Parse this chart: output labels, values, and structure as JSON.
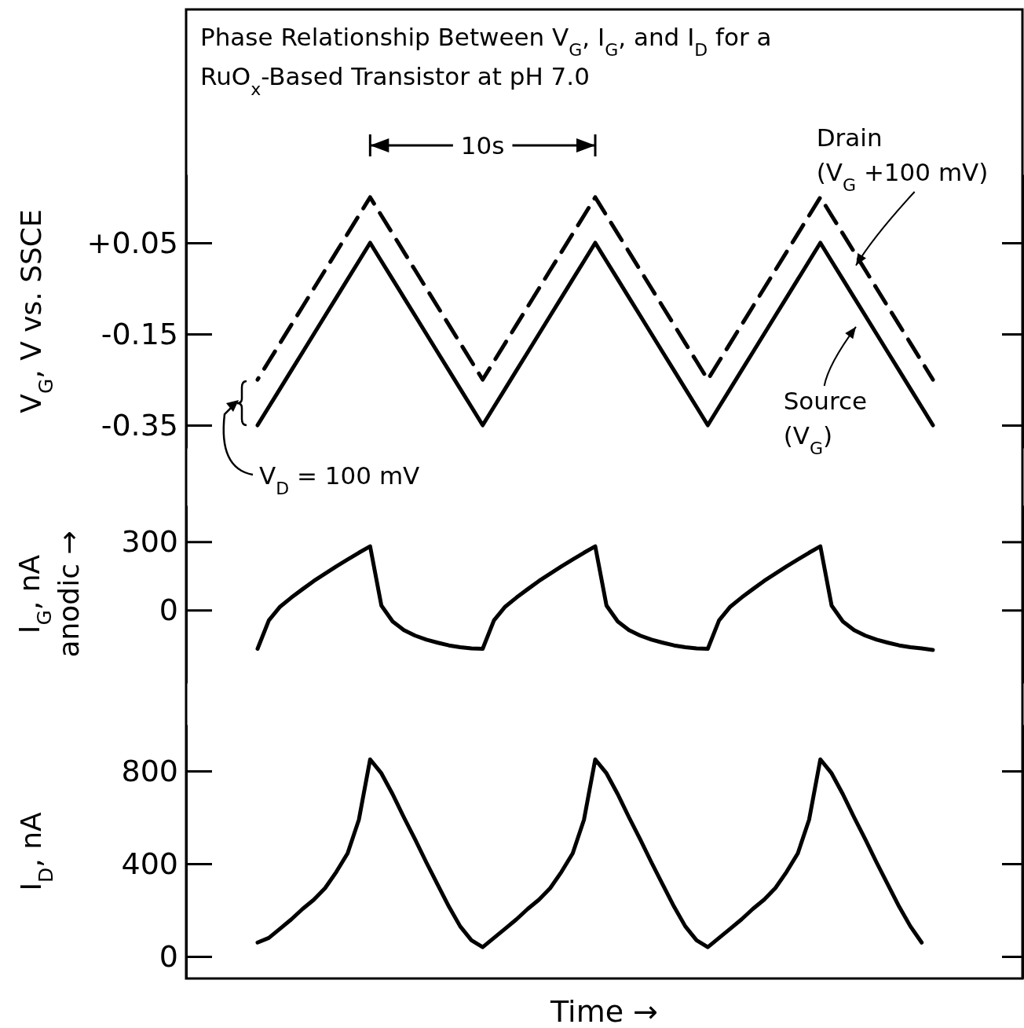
{
  "chart_data": [
    {
      "type": "line",
      "title": "Phase Relationship Between V$_{G}$, I$_{G}$, and I$_{D}$ for a RuO$_{x}$-Based Transistor at pH 7.0",
      "ylabel": "V$_{G}$, V vs. SSCE",
      "annotations": [
        "10s",
        "V$_{D}$ = 100 mV"
      ],
      "ylim": [
        -0.4,
        0.2
      ],
      "yticks": [
        {
          "value": 0.05,
          "label": "+0.05"
        },
        -0.15,
        -0.35
      ],
      "tick_labels": "y",
      "categories": [
        null,
        null,
        null,
        null,
        null,
        null,
        null,
        null,
        null,
        null,
        null,
        null,
        null,
        null,
        null,
        null,
        null,
        null,
        null,
        null,
        null,
        null,
        null,
        null,
        null,
        null,
        null,
        null,
        null,
        null,
        null,
        null,
        null,
        null,
        null,
        null,
        null,
        null,
        null,
        null,
        null,
        null,
        null,
        null,
        null,
        null,
        null,
        null,
        null,
        null,
        null,
        null,
        null,
        null,
        null,
        null,
        null,
        null,
        null,
        null,
        null
      ],
      "series": [
        {
          "name": "Drain (V$_{G}$ +100 mV)",
          "color": "#000000",
          "line_style": "dashed",
          "values": [
            -0.25,
            -0.21,
            -0.17,
            -0.13,
            -0.09,
            -0.05,
            -0.01,
            0.03,
            0.07,
            0.11,
            0.15,
            0.11,
            0.07,
            0.03,
            -0.01,
            -0.05,
            -0.09,
            -0.13,
            -0.17,
            -0.21,
            -0.25,
            -0.21,
            -0.17,
            -0.13,
            -0.09,
            -0.05,
            -0.01,
            0.03,
            0.07,
            0.11,
            0.15,
            0.11,
            0.07,
            0.03,
            -0.01,
            -0.05,
            -0.09,
            -0.13,
            -0.17,
            -0.21,
            -0.25,
            -0.21,
            -0.17,
            -0.13,
            -0.09,
            -0.05,
            -0.01,
            0.03,
            0.07,
            0.11,
            0.15,
            0.11,
            0.07,
            0.03,
            -0.01,
            -0.05,
            -0.09,
            -0.13,
            -0.17,
            -0.21,
            -0.25
          ]
        },
        {
          "name": "Source (V$_{G}$)",
          "color": "#000000",
          "line_style": "solid",
          "values": [
            -0.35,
            -0.31,
            -0.27,
            -0.23,
            -0.19,
            -0.15,
            -0.11,
            -0.07,
            -0.03,
            0.01,
            0.05,
            0.01,
            -0.03,
            -0.07,
            -0.11,
            -0.15,
            -0.19,
            -0.23,
            -0.27,
            -0.31,
            -0.35,
            -0.31,
            -0.27,
            -0.23,
            -0.19,
            -0.15,
            -0.11,
            -0.07,
            -0.03,
            0.01,
            0.05,
            0.01,
            -0.03,
            -0.07,
            -0.11,
            -0.15,
            -0.19,
            -0.23,
            -0.27,
            -0.31,
            -0.35,
            -0.31,
            -0.27,
            -0.23,
            -0.19,
            -0.15,
            -0.11,
            -0.07,
            -0.03,
            0.01,
            0.05,
            0.01,
            -0.03,
            -0.07,
            -0.11,
            -0.15,
            -0.19,
            -0.23,
            -0.27,
            -0.31,
            -0.35
          ]
        }
      ]
    },
    {
      "type": "line",
      "ylabel": "I$_{G}$, nA\nanodic →",
      "ylim": [
        -320,
        460
      ],
      "yticks": [
        300,
        0
      ],
      "tick_labels": "y",
      "categories": [
        null,
        null,
        null,
        null,
        null,
        null,
        null,
        null,
        null,
        null,
        null,
        null,
        null,
        null,
        null,
        null,
        null,
        null,
        null,
        null,
        null,
        null,
        null,
        null,
        null,
        null,
        null,
        null,
        null,
        null,
        null,
        null,
        null,
        null,
        null,
        null,
        null,
        null,
        null,
        null,
        null,
        null,
        null,
        null,
        null,
        null,
        null,
        null,
        null,
        null,
        null,
        null,
        null,
        null,
        null,
        null,
        null,
        null,
        null,
        null,
        null
      ],
      "series": [
        {
          "color": "#000000",
          "line_style": "solid",
          "values": [
            -170,
            -45,
            15,
            55,
            92,
            128,
            160,
            192,
            222,
            252,
            280,
            20,
            -50,
            -88,
            -112,
            -130,
            -143,
            -155,
            -163,
            -168,
            -170,
            -45,
            15,
            55,
            92,
            128,
            160,
            192,
            222,
            252,
            280,
            20,
            -50,
            -88,
            -112,
            -130,
            -143,
            -155,
            -163,
            -168,
            -170,
            -45,
            15,
            55,
            92,
            128,
            160,
            192,
            222,
            252,
            280,
            20,
            -50,
            -88,
            -112,
            -130,
            -143,
            -155,
            -163,
            -168,
            -175
          ]
        }
      ]
    },
    {
      "type": "line",
      "ylabel": "I$_{D}$, nA",
      "xlabel": "Time →",
      "ylim": [
        -95,
        1000
      ],
      "yticks": [
        800,
        400,
        0
      ],
      "tick_labels": "y",
      "categories": [
        null,
        null,
        null,
        null,
        null,
        null,
        null,
        null,
        null,
        null,
        null,
        null,
        null,
        null,
        null,
        null,
        null,
        null,
        null,
        null,
        null,
        null,
        null,
        null,
        null,
        null,
        null,
        null,
        null,
        null,
        null,
        null,
        null,
        null,
        null,
        null,
        null,
        null,
        null,
        null,
        null,
        null,
        null,
        null,
        null,
        null,
        null,
        null,
        null,
        null,
        null,
        null,
        null,
        null,
        null,
        null,
        null,
        null,
        null,
        null,
        null
      ],
      "series": [
        {
          "color": "#000000",
          "line_style": "solid",
          "values": [
            60,
            80,
            120,
            160,
            205,
            245,
            295,
            365,
            445,
            590,
            850,
            790,
            700,
            600,
            505,
            405,
            310,
            215,
            130,
            70,
            40,
            80,
            120,
            160,
            205,
            245,
            295,
            365,
            445,
            590,
            850,
            790,
            700,
            600,
            505,
            405,
            310,
            215,
            130,
            70,
            40,
            80,
            120,
            160,
            205,
            245,
            295,
            365,
            445,
            590,
            850,
            790,
            700,
            600,
            505,
            405,
            310,
            215,
            130,
            60,
            null
          ]
        }
      ]
    }
  ]
}
